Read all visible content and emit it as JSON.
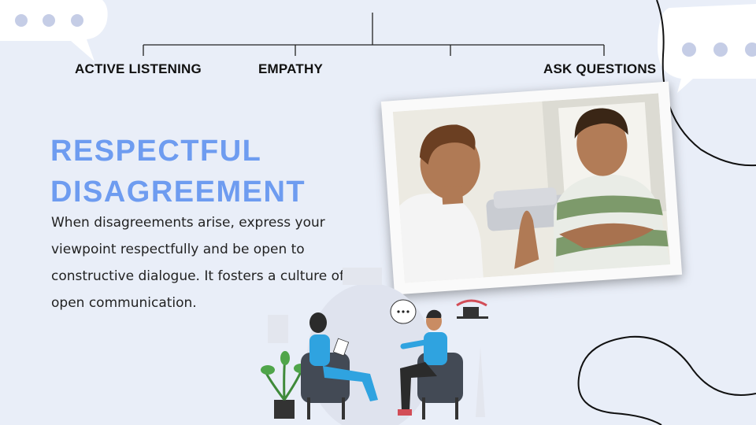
{
  "topics": {
    "active_listening": "ACTIVE LISTENING",
    "empathy": "EMPATHY",
    "ask_questions": "ASK QUESTIONS"
  },
  "section": {
    "title_line1": "RESPECTFUL",
    "title_line2": "DISAGREEMENT",
    "body": "When disagreements arise, express your viewpoint respectfully and be open to constructive dialogue. It fosters a culture of open communication."
  },
  "colors": {
    "background": "#e9eef8",
    "title": "#6e9cf0",
    "bubble_dots": "#c5cde6"
  },
  "illustrations": {
    "photo": "two-men-talking-illustration",
    "therapy": "counseling-session-illustration"
  }
}
